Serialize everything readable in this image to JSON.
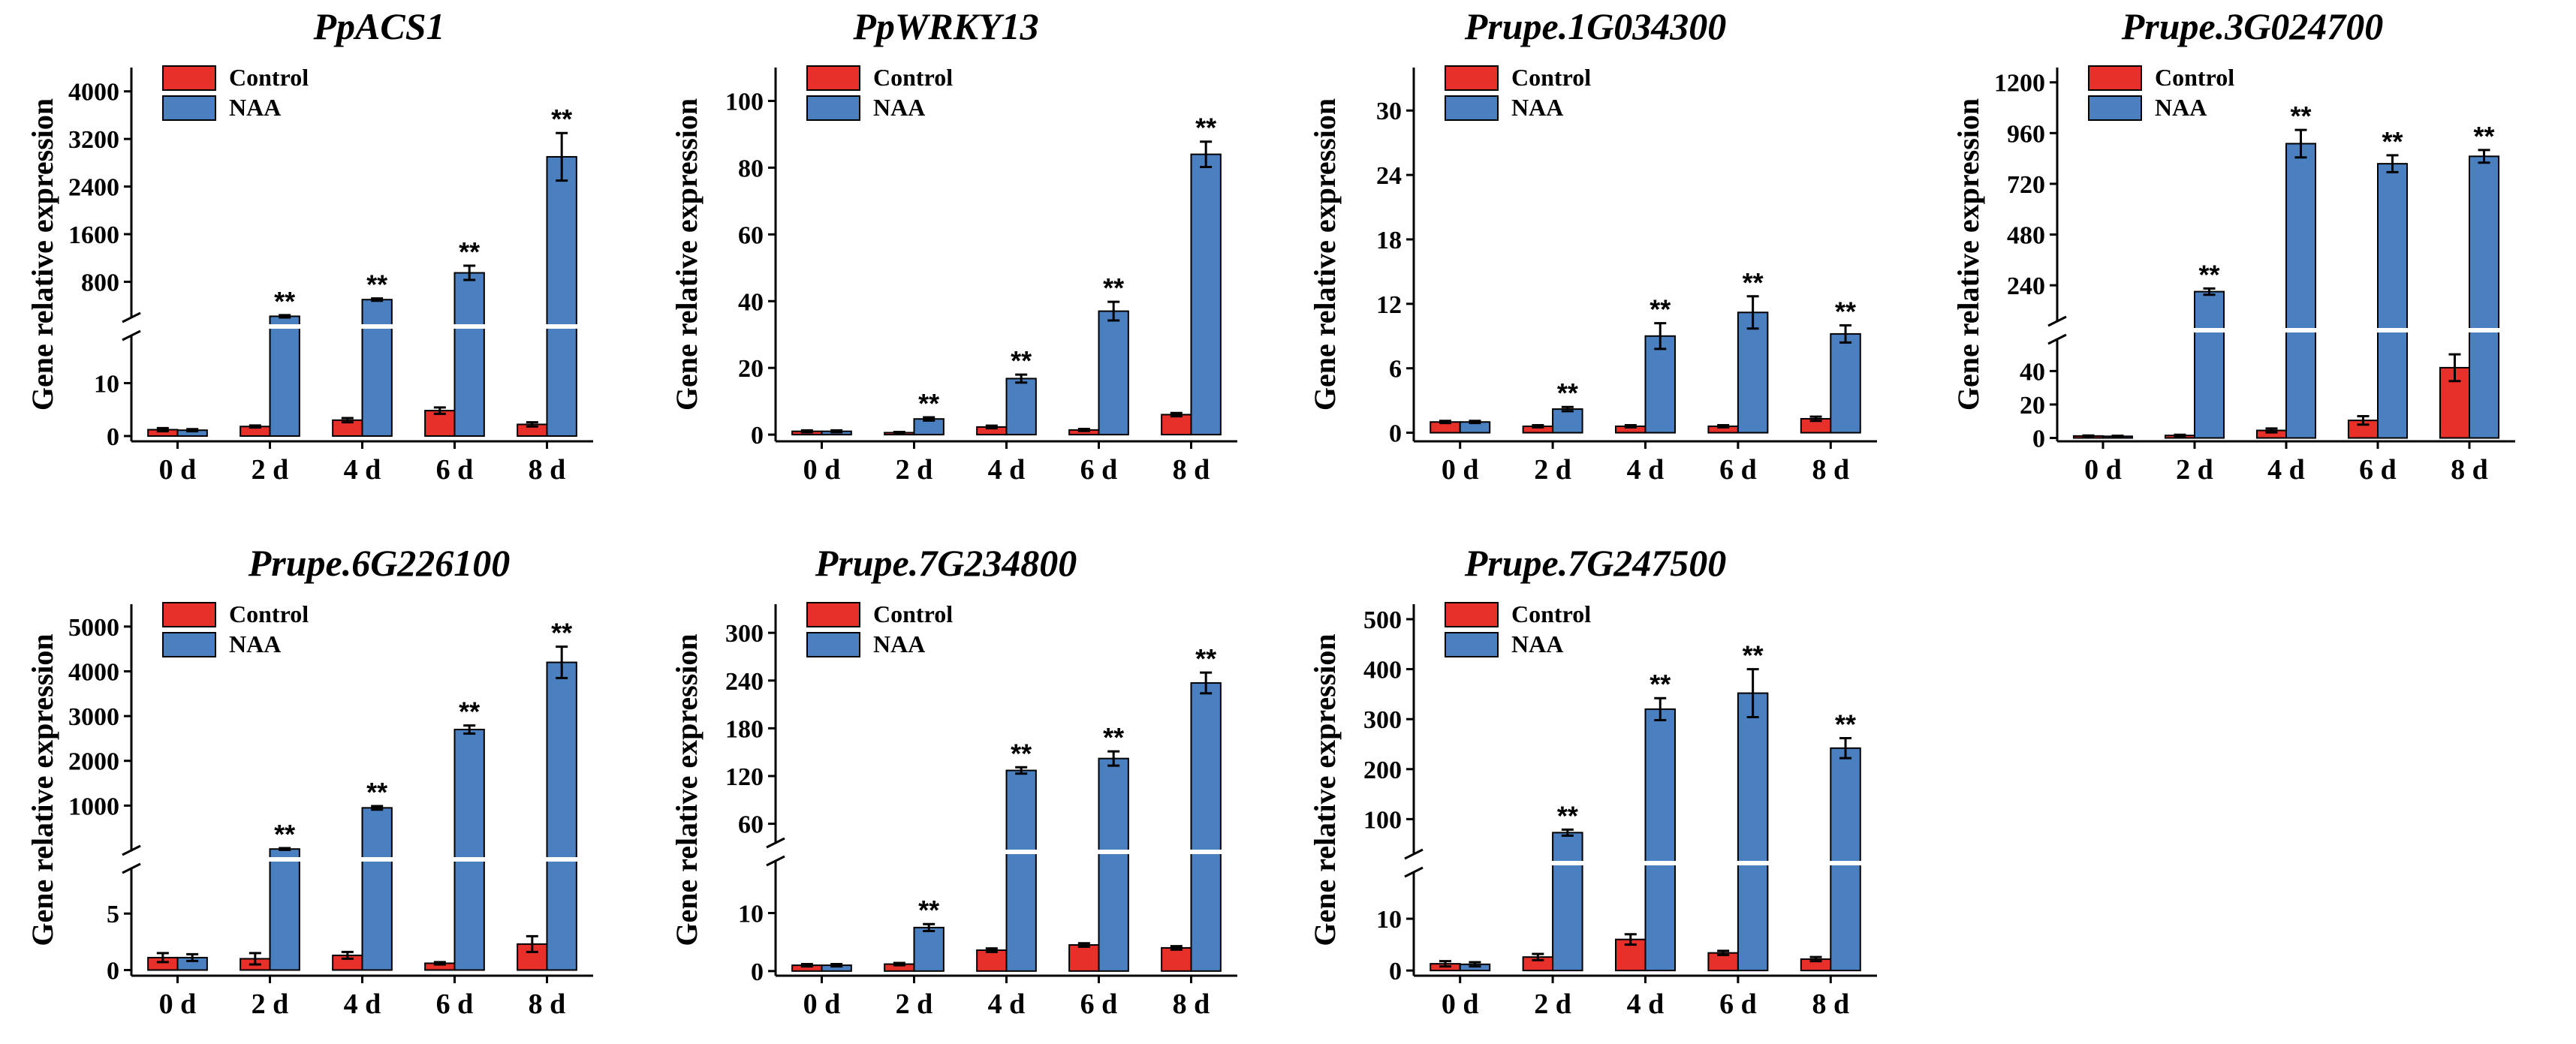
{
  "chart_data": [
    {
      "type": "bar",
      "title": "PpACS1",
      "ylabel": "Gene relative expression",
      "categories": [
        "0 d",
        "2 d",
        "4 d",
        "6 d",
        "8 d"
      ],
      "series": [
        {
          "name": "Control",
          "color": "#e8302a",
          "values": [
            1.2,
            1.8,
            3.0,
            4.8,
            2.2
          ],
          "errors": [
            0.3,
            0.2,
            0.4,
            0.6,
            0.4
          ]
        },
        {
          "name": "NAA",
          "color": "#4a80c0",
          "values": [
            1.1,
            220,
            500,
            950,
            2900
          ],
          "errors": [
            0.2,
            20,
            20,
            120,
            400
          ]
        }
      ],
      "significance": [
        "",
        "**",
        "**",
        "**",
        "**"
      ],
      "lower_ticks": [
        0,
        10
      ],
      "upper_ticks": [
        800,
        1600,
        2400,
        3200,
        4000
      ],
      "ylim_lower": [
        -1,
        19
      ],
      "ylim_upper": [
        200,
        4400
      ]
    },
    {
      "type": "bar",
      "title": "PpWRKY13",
      "ylabel": "Gene relative expression",
      "categories": [
        "0 d",
        "2 d",
        "4 d",
        "6 d",
        "8 d"
      ],
      "series": [
        {
          "name": "Control",
          "color": "#e8302a",
          "values": [
            1.0,
            0.6,
            2.3,
            1.4,
            6.0
          ],
          "errors": [
            0.3,
            0.2,
            0.4,
            0.3,
            0.5
          ]
        },
        {
          "name": "NAA",
          "color": "#4a80c0",
          "values": [
            1.0,
            4.7,
            16.8,
            37.0,
            84.0
          ],
          "errors": [
            0.3,
            0.5,
            1.2,
            2.8,
            3.8
          ]
        }
      ],
      "significance": [
        "",
        "**",
        "**",
        "**",
        "**"
      ],
      "ticks": [
        0,
        20,
        40,
        60,
        80,
        100
      ],
      "ylim": [
        -2,
        110
      ]
    },
    {
      "type": "bar",
      "title": "Prupe.1G034300",
      "ylabel": "Gene relative expression",
      "categories": [
        "0 d",
        "2 d",
        "4 d",
        "6 d",
        "8 d"
      ],
      "series": [
        {
          "name": "Control",
          "color": "#e8302a",
          "values": [
            1.0,
            0.6,
            0.6,
            0.6,
            1.3
          ],
          "errors": [
            0.1,
            0.1,
            0.1,
            0.1,
            0.2
          ]
        },
        {
          "name": "NAA",
          "color": "#4a80c0",
          "values": [
            1.0,
            2.2,
            9.0,
            11.2,
            9.2
          ],
          "errors": [
            0.1,
            0.2,
            1.2,
            1.5,
            0.8
          ]
        }
      ],
      "significance": [
        "",
        "**",
        "**",
        "**",
        "**"
      ],
      "ticks": [
        0,
        6,
        12,
        18,
        24,
        30
      ],
      "ylim": [
        -0.8,
        34
      ]
    },
    {
      "type": "bar",
      "title": "Prupe.3G024700",
      "ylabel": "Gene relative expression",
      "categories": [
        "0 d",
        "2 d",
        "4 d",
        "6 d",
        "8 d"
      ],
      "series": [
        {
          "name": "Control",
          "color": "#e8302a",
          "values": [
            1.2,
            1.5,
            4.5,
            10.5,
            42.0
          ],
          "errors": [
            0.3,
            0.4,
            1.2,
            2.5,
            8.0
          ]
        },
        {
          "name": "NAA",
          "color": "#4a80c0",
          "values": [
            1.0,
            210,
            910,
            815,
            850
          ],
          "errors": [
            0.3,
            15,
            65,
            40,
            30
          ]
        }
      ],
      "significance": [
        "",
        "**",
        "**",
        "**",
        "**"
      ],
      "lower_ticks": [
        0,
        20,
        40
      ],
      "upper_ticks": [
        240,
        480,
        720,
        960,
        1200
      ],
      "ylim_lower": [
        -2,
        59
      ],
      "ylim_upper": [
        70,
        1270
      ]
    },
    {
      "type": "bar",
      "title": "Prupe.6G226100",
      "ylabel": "Gene relative expression",
      "categories": [
        "0 d",
        "2 d",
        "4 d",
        "6 d",
        "8 d"
      ],
      "series": [
        {
          "name": "Control",
          "color": "#e8302a",
          "values": [
            1.1,
            1.0,
            1.3,
            0.6,
            2.3
          ],
          "errors": [
            0.4,
            0.5,
            0.3,
            0.1,
            0.7
          ]
        },
        {
          "name": "NAA",
          "color": "#4a80c0",
          "values": [
            1.1,
            30,
            950,
            2700,
            4200
          ],
          "errors": [
            0.3,
            20,
            40,
            90,
            350
          ]
        }
      ],
      "significance": [
        "",
        "**",
        "**",
        "**",
        "**"
      ],
      "lower_ticks": [
        0,
        5
      ],
      "upper_ticks": [
        1000,
        2000,
        3000,
        4000,
        5000
      ],
      "ylim_lower": [
        -0.5,
        9
      ],
      "ylim_upper": [
        0,
        5500
      ]
    },
    {
      "type": "bar",
      "title": "Prupe.7G234800",
      "ylabel": "Gene relative expression",
      "categories": [
        "0 d",
        "2 d",
        "4 d",
        "6 d",
        "8 d"
      ],
      "series": [
        {
          "name": "Control",
          "color": "#e8302a",
          "values": [
            1.0,
            1.2,
            3.6,
            4.5,
            4.0
          ],
          "errors": [
            0.2,
            0.2,
            0.3,
            0.3,
            0.3
          ]
        },
        {
          "name": "NAA",
          "color": "#4a80c0",
          "values": [
            1.0,
            7.5,
            127,
            142,
            237
          ],
          "errors": [
            0.2,
            0.6,
            4,
            9,
            13
          ]
        }
      ],
      "significance": [
        "",
        "**",
        "**",
        "**",
        "**"
      ],
      "lower_ticks": [
        0,
        10
      ],
      "upper_ticks": [
        60,
        120,
        180,
        240,
        300
      ],
      "ylim_lower": [
        -0.8,
        19
      ],
      "ylim_upper": [
        36,
        336
      ]
    },
    {
      "type": "bar",
      "title": "Prupe.7G247500",
      "ylabel": "Gene relative expression",
      "categories": [
        "0 d",
        "2 d",
        "4 d",
        "6 d",
        "8 d"
      ],
      "series": [
        {
          "name": "Control",
          "color": "#e8302a",
          "values": [
            1.3,
            2.6,
            6.0,
            3.4,
            2.2
          ],
          "errors": [
            0.5,
            0.6,
            1.0,
            0.4,
            0.4
          ]
        },
        {
          "name": "NAA",
          "color": "#4a80c0",
          "values": [
            1.2,
            73,
            320,
            352,
            242
          ],
          "errors": [
            0.4,
            6,
            22,
            48,
            20
          ]
        }
      ],
      "significance": [
        "",
        "**",
        "**",
        "**",
        "**"
      ],
      "lower_ticks": [
        0,
        10
      ],
      "upper_ticks": [
        100,
        200,
        300,
        400,
        500
      ],
      "ylim_lower": [
        -1,
        19
      ],
      "ylim_upper": [
        30,
        530
      ]
    }
  ]
}
